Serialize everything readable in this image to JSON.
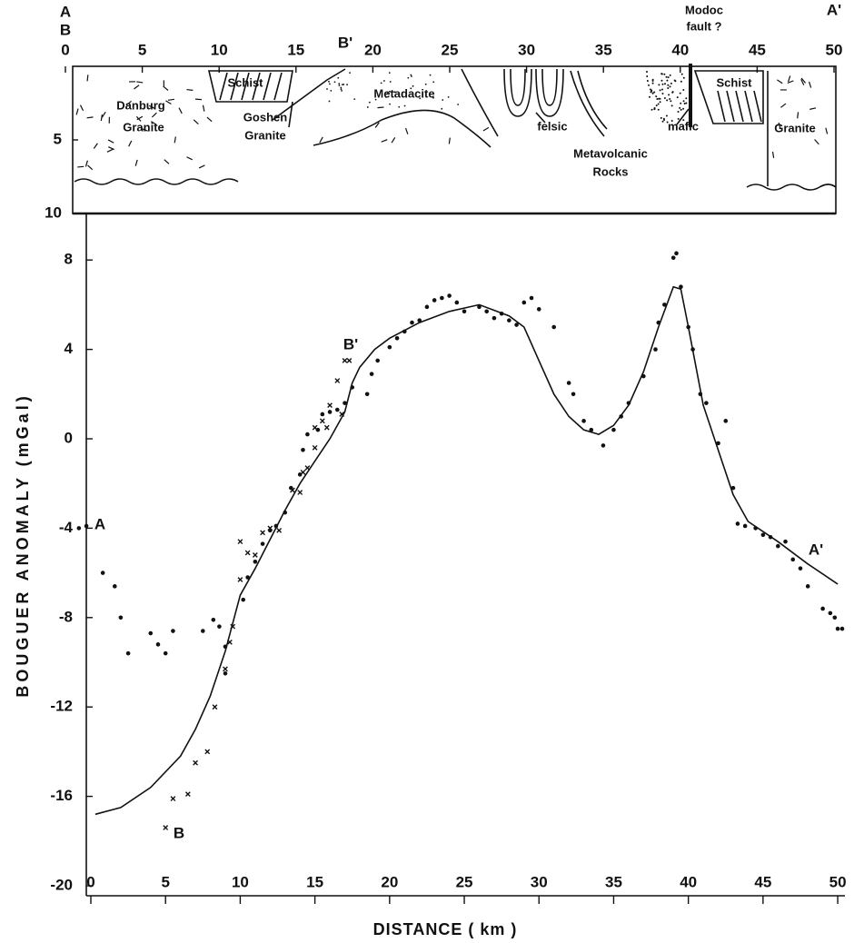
{
  "chart_data": [
    {
      "type": "cross-section",
      "xlim": [
        0,
        50
      ],
      "xticks": [
        0,
        5,
        10,
        15,
        20,
        25,
        30,
        35,
        40,
        45,
        50
      ],
      "ylim": [
        0,
        10
      ],
      "yticks": [
        5,
        10
      ],
      "annotations": [
        "A",
        "B",
        "B'",
        "A'",
        "Modoc",
        "fault ?",
        "Schist",
        "Danburg",
        "Granite",
        "Goshen",
        "Granite",
        "Metadacite",
        "felsic",
        "mafic",
        "Metavolcanic",
        "Rocks",
        "Schist",
        "Granite"
      ]
    },
    {
      "type": "line",
      "xlabel": "DISTANCE ( km )",
      "ylabel": "BOUGUER ANOMALY (mGal)",
      "xlim": [
        -1,
        50.5
      ],
      "xticks": [
        0,
        5,
        10,
        15,
        20,
        25,
        30,
        35,
        40,
        45,
        50
      ],
      "ylim": [
        -20,
        10
      ],
      "yticks": [
        -20,
        -16,
        -12,
        -8,
        -4,
        0,
        4,
        8
      ],
      "color": "#111",
      "series": [
        {
          "marker": "line",
          "x": [
            0.3,
            2,
            4,
            6,
            7,
            8,
            9,
            10,
            11,
            12,
            13,
            14,
            15,
            16,
            17,
            17.5,
            18,
            19,
            20,
            22,
            24,
            26,
            28,
            29,
            30,
            31,
            32,
            33,
            34,
            35,
            36,
            37,
            38,
            39,
            39.5,
            40,
            41,
            42,
            43,
            44,
            46,
            48,
            50
          ],
          "y": [
            -16.8,
            -16.5,
            -15.6,
            -14.2,
            -13,
            -11.5,
            -9.5,
            -7,
            -5.8,
            -4.5,
            -3.2,
            -2,
            -1,
            0,
            1.2,
            2.5,
            3.2,
            4,
            4.5,
            5.2,
            5.7,
            6,
            5.5,
            5,
            3.5,
            2,
            1,
            0.4,
            0.2,
            0.6,
            1.5,
            3,
            5,
            6.8,
            6.7,
            5,
            1.5,
            -0.5,
            -2.5,
            -3.7,
            -4.6,
            -5.6,
            -6.5
          ]
        },
        {
          "marker": "dot",
          "x": [
            -0.8,
            -0.3,
            0.8,
            1.6,
            2,
            2.5,
            4,
            4.5,
            5,
            5.5,
            7.5,
            8.2,
            8.6,
            9,
            9,
            10.2,
            10.5,
            11,
            11.5,
            12,
            12.4,
            13,
            13.4,
            14,
            14.2,
            14.5,
            15.2,
            15.5,
            16,
            16.5,
            17,
            17.5,
            18.5,
            18.8,
            19.2,
            20,
            20.5,
            21,
            21.5,
            22,
            22.5,
            23,
            23.5,
            24,
            24.5,
            25,
            26,
            26.5,
            27,
            27.5,
            28,
            28.5,
            29,
            29.5,
            30,
            31,
            32,
            32.3,
            33,
            33.5,
            34.3,
            35,
            35.5,
            36,
            37,
            37.8,
            38,
            38.4,
            39,
            39.2,
            39.5,
            40,
            40.3,
            40.8,
            41.2,
            42,
            42.5,
            43,
            43.3,
            43.8,
            44.5,
            45,
            45.5,
            46,
            46.5,
            47,
            47.5,
            48,
            49,
            49.5,
            49.8,
            50,
            50.3
          ],
          "y": [
            -4,
            -3.9,
            -6,
            -6.6,
            -8,
            -9.6,
            -8.7,
            -9.2,
            -9.6,
            -8.6,
            -8.6,
            -8.1,
            -8.4,
            -10.5,
            -9.3,
            -7.2,
            -6.2,
            -5.5,
            -4.7,
            -4.1,
            -3.9,
            -3.3,
            -2.2,
            -1.6,
            -0.5,
            0.2,
            0.4,
            1.1,
            1.2,
            1.3,
            1.6,
            2.3,
            2,
            2.9,
            3.5,
            4.1,
            4.5,
            4.8,
            5.2,
            5.3,
            5.9,
            6.2,
            6.3,
            6.4,
            6.1,
            5.7,
            5.9,
            5.7,
            5.4,
            5.6,
            5.3,
            5.1,
            6.1,
            6.3,
            5.8,
            5,
            2.5,
            2,
            0.8,
            0.4,
            -0.3,
            0.4,
            1,
            1.6,
            2.8,
            4,
            5.2,
            6,
            8.1,
            8.3,
            6.8,
            5,
            4,
            2,
            1.6,
            -0.2,
            0.8,
            -2.2,
            -3.8,
            -3.9,
            -4,
            -4.3,
            -4.4,
            -4.8,
            -4.6,
            -5.4,
            -5.8,
            -6.6,
            -7.6,
            -7.8,
            -8,
            -8.5,
            -8.5
          ]
        },
        {
          "marker": "x",
          "x": [
            5,
            5.5,
            6.5,
            7,
            7.8,
            8.3,
            9,
            9.3,
            9.5,
            10,
            10,
            10.5,
            11,
            11.5,
            12,
            12.6,
            13.5,
            14,
            14.2,
            14.5,
            15,
            15,
            15.5,
            15.8,
            16,
            16.5,
            16.8,
            17,
            17.3
          ],
          "y": [
            -17.4,
            -16.1,
            -15.9,
            -14.5,
            -14,
            -12,
            -10.3,
            -9.1,
            -8.4,
            -4.6,
            -6.3,
            -5.1,
            -5.2,
            -4.2,
            -4,
            -4.1,
            -2.3,
            -2.4,
            -1.5,
            -1.3,
            -0.4,
            0.5,
            0.8,
            0.5,
            1.5,
            2.6,
            1.1,
            3.5,
            3.5
          ]
        }
      ],
      "annotations": [
        "A",
        "B",
        "B'",
        "A'"
      ]
    }
  ]
}
